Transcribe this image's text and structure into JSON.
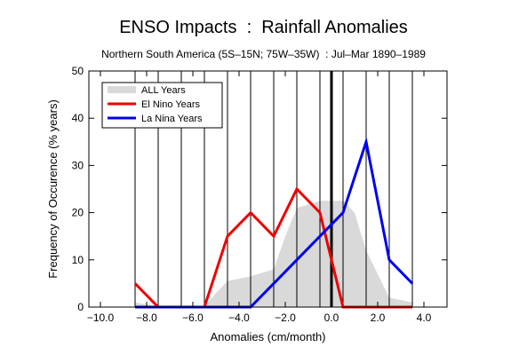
{
  "chart_data": {
    "type": "line",
    "title": "ENSO Impacts  :  Rainfall Anomalies",
    "subtitle": "Northern South America (5S–15N; 75W–35W)  : Jul–Mar 1890–1989",
    "xlabel": "Anomalies  (cm/month)",
    "ylabel": "Frequency of Occurence  (% years)",
    "xlim": [
      -10.5,
      5.0
    ],
    "ylim": [
      0,
      50
    ],
    "x_ticks": [
      -10,
      -8,
      -6,
      -4,
      -2,
      0,
      2,
      4
    ],
    "x_tick_labels": [
      "−10.0",
      "−8.0",
      "−6.0",
      "−4.0",
      "−2.0",
      "0.0",
      "2.0",
      "4.0"
    ],
    "y_ticks": [
      0,
      10,
      20,
      30,
      40,
      50
    ],
    "y_tick_labels": [
      "0",
      "10",
      "20",
      "30",
      "40",
      "50"
    ],
    "vertical_grid_x": [
      -8.5,
      -7.5,
      -6.5,
      -5.5,
      -4.5,
      -3.5,
      -2.5,
      -1.5,
      -0.5,
      0.5,
      1.5,
      2.5,
      3.5
    ],
    "zero_line_x": 0,
    "legend_position": "top-left",
    "series": [
      {
        "name": "ALL Years",
        "style": "filled-area",
        "color": "#d9d9d9",
        "x": [
          -8.5,
          -7.5,
          -6.5,
          -5.5,
          -5.0,
          -4.5,
          -3.5,
          -2.5,
          -2.0,
          -1.5,
          -0.5,
          0.5,
          1.0,
          1.5,
          2.5,
          3.5
        ],
        "y": [
          1,
          0,
          0,
          0,
          3,
          5.5,
          6.5,
          8,
          15,
          21,
          22.5,
          22.5,
          20,
          12,
          2,
          1
        ]
      },
      {
        "name": "El Nino Years",
        "style": "line",
        "color": "#ee0000",
        "x": [
          -8.5,
          -7.5,
          -6.5,
          -5.5,
          -4.5,
          -3.5,
          -2.5,
          -1.5,
          -0.5,
          0.5,
          1.5,
          2.5,
          3.5
        ],
        "y": [
          5,
          0,
          0,
          0,
          15,
          20,
          15,
          25,
          20,
          0,
          0,
          0,
          0
        ]
      },
      {
        "name": "La Nina Years",
        "style": "line",
        "color": "#0000ee",
        "x": [
          -8.5,
          -7.5,
          -6.5,
          -5.5,
          -4.5,
          -3.5,
          -2.5,
          -1.5,
          -0.5,
          0.5,
          1.5,
          2.5,
          3.5
        ],
        "y": [
          0,
          0,
          0,
          0,
          0,
          0,
          5,
          10,
          15,
          20,
          35,
          10,
          5
        ]
      }
    ]
  }
}
